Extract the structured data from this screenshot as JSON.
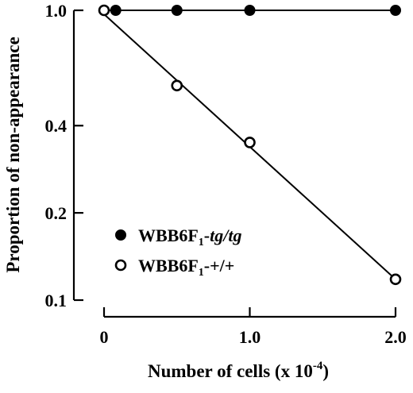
{
  "chart_data": {
    "type": "scatter",
    "title": "",
    "xlabel": "Number of cells (x 10",
    "xlabel_superscript": "-4",
    "xlabel_suffix": ")",
    "ylabel": "Proportion of non-appearance",
    "x_scale": "linear",
    "y_scale": "log",
    "xlim": [
      0,
      2.0
    ],
    "ylim": [
      0.1,
      1.0
    ],
    "x_ticks": [
      {
        "value": 0,
        "label": "0"
      },
      {
        "value": 1.0,
        "label": "1.0"
      },
      {
        "value": 2.0,
        "label": "2.0"
      }
    ],
    "y_ticks": [
      {
        "value": 0.1,
        "label": "0.1"
      },
      {
        "value": 0.2,
        "label": "0.2"
      },
      {
        "value": 0.4,
        "label": "0.4"
      },
      {
        "value": 1.0,
        "label": "1.0"
      }
    ],
    "grid": false,
    "legend_placement": "lower-left",
    "series": [
      {
        "name": "WBB6F1-tg/tg",
        "legend": {
          "base": "WBB6F",
          "subscript": "1",
          "suffix": "-",
          "italic": "tg/tg"
        },
        "marker": "filled-circle",
        "points": [
          {
            "x": 0.08,
            "y": 1.0
          },
          {
            "x": 0.5,
            "y": 1.0
          },
          {
            "x": 1.0,
            "y": 1.0
          },
          {
            "x": 2.0,
            "y": 1.0
          }
        ],
        "fit_line": {
          "x": [
            0,
            2.0
          ],
          "y": [
            1.0,
            1.0
          ]
        }
      },
      {
        "name": "WBB6F1-+/+",
        "legend": {
          "base": "WBB6F",
          "subscript": "1",
          "suffix": "-+/+",
          "italic": ""
        },
        "marker": "open-circle",
        "points": [
          {
            "x": 0,
            "y": 1.0
          },
          {
            "x": 0.5,
            "y": 0.55
          },
          {
            "x": 1.0,
            "y": 0.35
          },
          {
            "x": 2.0,
            "y": 0.118
          }
        ],
        "fit_line": {
          "x": [
            0,
            2.0
          ],
          "y": [
            0.97,
            0.118
          ]
        }
      }
    ],
    "colors": {
      "ink": "#000000",
      "background": "#ffffff"
    }
  }
}
